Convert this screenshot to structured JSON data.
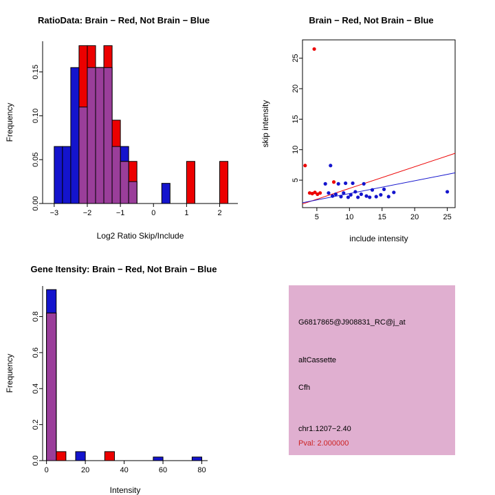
{
  "figure": {
    "background": "#FFFFFF"
  },
  "chart_data": [
    {
      "id": "ratio_hist",
      "type": "bar",
      "title": "RatioData: Brain − Red, Not Brain − Blue",
      "xlabel": "Log2 Ratio Skip/Include",
      "ylabel": "Frequency",
      "xlim": [
        -3.35,
        2.55
      ],
      "ylim": [
        0,
        0.185
      ],
      "xtick_values": [
        -3,
        -2,
        -1,
        0,
        1,
        2
      ],
      "xtick_labels": [
        "−3",
        "−2",
        "−1",
        "0",
        "1",
        "2"
      ],
      "ytick_values": [
        0,
        0.05,
        0.1,
        0.15
      ],
      "ytick_labels": [
        "0.00",
        "0.05",
        "0.10",
        "0.15"
      ],
      "bin_width": 0.25,
      "overlap_color": "#9A3E9A",
      "grid": false,
      "series": [
        {
          "name": "Not Brain (blue)",
          "color": "#1414CD",
          "bins": [
            [
              -3,
              0.065
            ],
            [
              -2.75,
              0.065
            ],
            [
              -2.5,
              0.155
            ],
            [
              -2.25,
              0.11
            ],
            [
              -2,
              0.155
            ],
            [
              -1.75,
              0.155
            ],
            [
              -1.5,
              0.155
            ],
            [
              -1.25,
              0.065
            ],
            [
              -1,
              0.065
            ],
            [
              -0.75,
              0.025
            ],
            [
              0.25,
              0.023
            ]
          ]
        },
        {
          "name": "Brain (red)",
          "color": "#EC0000",
          "bins": [
            [
              -2.25,
              0.18
            ],
            [
              -2,
              0.18
            ],
            [
              -1.75,
              0.155
            ],
            [
              -1.5,
              0.18
            ],
            [
              -1.25,
              0.095
            ],
            [
              -1,
              0.048
            ],
            [
              -0.75,
              0.048
            ],
            [
              1,
              0.048
            ],
            [
              2,
              0.048
            ]
          ]
        }
      ]
    },
    {
      "id": "scatter",
      "type": "scatter",
      "title": "Brain − Red, Not Brain − Blue",
      "xlabel": "include intensity",
      "ylabel": "skip intensity",
      "xlim": [
        2.8,
        26.2
      ],
      "ylim": [
        0.5,
        28
      ],
      "xtick_values": [
        5,
        10,
        15,
        20,
        25
      ],
      "xtick_labels": [
        "5",
        "10",
        "15",
        "20",
        "25"
      ],
      "ytick_values": [
        5,
        10,
        15,
        20,
        25
      ],
      "ytick_labels": [
        "5",
        "10",
        "15",
        "20",
        "25"
      ],
      "grid": false,
      "series": [
        {
          "name": "Brain (red)",
          "color": "#EC0000",
          "points": [
            [
              4.6,
              26.5
            ],
            [
              3.2,
              7.4
            ],
            [
              3.9,
              2.9
            ],
            [
              4.3,
              2.8
            ],
            [
              4.7,
              3.0
            ],
            [
              5.1,
              2.7
            ],
            [
              5.5,
              2.9
            ],
            [
              7.6,
              4.7
            ]
          ]
        },
        {
          "name": "Not Brain (blue)",
          "color": "#1414CD",
          "points": [
            [
              7.1,
              7.4
            ],
            [
              6.3,
              4.4
            ],
            [
              6.8,
              2.9
            ],
            [
              7.4,
              2.4
            ],
            [
              7.9,
              2.7
            ],
            [
              8.3,
              4.4
            ],
            [
              8.7,
              2.3
            ],
            [
              9.1,
              2.9
            ],
            [
              9.4,
              4.5
            ],
            [
              9.8,
              2.2
            ],
            [
              10.2,
              2.6
            ],
            [
              10.5,
              4.5
            ],
            [
              10.9,
              3.1
            ],
            [
              11.3,
              2.2
            ],
            [
              11.8,
              2.7
            ],
            [
              12.2,
              4.4
            ],
            [
              12.6,
              2.4
            ],
            [
              13.1,
              2.2
            ],
            [
              13.5,
              3.4
            ],
            [
              14.1,
              2.3
            ],
            [
              14.8,
              2.6
            ],
            [
              15.3,
              3.5
            ],
            [
              16.0,
              2.3
            ],
            [
              16.8,
              3.0
            ],
            [
              25.0,
              3.1
            ]
          ]
        }
      ],
      "lines": [
        {
          "name": "brain-fit-line",
          "color": "#EC0000",
          "x1": 2.8,
          "y1": 1.1,
          "x2": 26.2,
          "y2": 9.4
        },
        {
          "name": "notbrain-fit-line",
          "color": "#1414CD",
          "x1": 2.8,
          "y1": 1.3,
          "x2": 26.2,
          "y2": 6.2
        }
      ]
    },
    {
      "id": "gene_hist",
      "type": "bar",
      "title": "Gene Itensity: Brain − Red, Not Brain − Blue",
      "xlabel": "Intensity",
      "ylabel": "Frequency",
      "xlim": [
        -2,
        83
      ],
      "ylim": [
        0,
        0.97
      ],
      "xtick_values": [
        0,
        20,
        40,
        60,
        80
      ],
      "xtick_labels": [
        "0",
        "20",
        "40",
        "60",
        "80"
      ],
      "ytick_values": [
        0,
        0.2,
        0.4,
        0.6,
        0.8
      ],
      "ytick_labels": [
        "0.0",
        "0.2",
        "0.4",
        "0.6",
        "0.8"
      ],
      "bin_width": 5,
      "overlap_color": "#9A3E9A",
      "grid": false,
      "series": [
        {
          "name": "Not Brain (blue)",
          "color": "#1414CD",
          "bins": [
            [
              0,
              0.95
            ],
            [
              15,
              0.05
            ],
            [
              55,
              0.02
            ],
            [
              75,
              0.02
            ]
          ]
        },
        {
          "name": "Brain (red)",
          "color": "#EC0000",
          "bins": [
            [
              0,
              0.82
            ],
            [
              5,
              0.05
            ],
            [
              30,
              0.05
            ]
          ]
        }
      ]
    }
  ],
  "info_panel": {
    "bg_color": "#E0AFD0",
    "lines": [
      {
        "text": "G6817865@J908831_RC@j_at",
        "color": "#000000"
      },
      {
        "text": "altCassette",
        "color": "#000000"
      },
      {
        "text": "Cfh",
        "color": "#000000"
      },
      {
        "text": "chr1.1207−2.40",
        "color": "#000000"
      },
      {
        "text": "Pval: 2.000000",
        "color": "#CC2222"
      }
    ]
  }
}
